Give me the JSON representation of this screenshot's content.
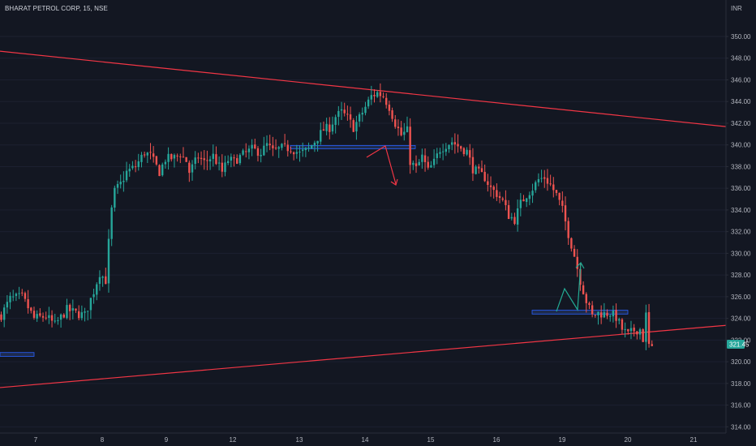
{
  "header": {
    "title": "BHARAT PETROL CORP, 15, NSE"
  },
  "axis": {
    "currency": "INR"
  },
  "current_price": {
    "label": "321.45",
    "value": 321.45
  },
  "colors": {
    "background": "#131722",
    "up": "#26a69a",
    "down": "#ef5350",
    "trendline": "#f23645",
    "zone_fill": "#1e2b4d",
    "zone_border": "#2962ff",
    "arrow_down": "#f23645",
    "arrow_up": "#22ab94",
    "price_tag": "#26a69a",
    "axis_text": "#b2b5be",
    "axis_line": "#2a2e39"
  },
  "chart_data": {
    "type": "candlestick",
    "title": "BHARAT PETROL CORP, 15, NSE",
    "ylabel": "INR",
    "ylim": [
      313.3,
      353.5
    ],
    "y_ticks": [
      "314.00",
      "316.00",
      "318.00",
      "320.00",
      "322.00",
      "324.00",
      "326.00",
      "328.00",
      "330.00",
      "332.00",
      "334.00",
      "336.00",
      "338.00",
      "340.00",
      "342.00",
      "344.00",
      "346.00",
      "348.00",
      "350.00"
    ],
    "x_ticks": [
      "7",
      "8",
      "9",
      "12",
      "13",
      "14",
      "15",
      "16",
      "19",
      "20",
      "21"
    ],
    "session_path": [
      {
        "i": 0,
        "p": 324.3
      },
      {
        "i": 3,
        "p": 325.8
      },
      {
        "i": 7,
        "p": 326.0
      },
      {
        "i": 11,
        "p": 324.0
      },
      {
        "i": 15,
        "p": 324.2
      },
      {
        "i": 18,
        "p": 323.4
      },
      {
        "i": 22,
        "p": 324.8
      },
      {
        "i": 26,
        "p": 324.4
      },
      {
        "i": 28,
        "p": 324.3
      },
      {
        "i": 31,
        "p": 326.5
      },
      {
        "i": 33,
        "p": 328.2
      },
      {
        "i": 35,
        "p": 327.5
      },
      {
        "i": 36,
        "p": 331.0
      },
      {
        "i": 37,
        "p": 334.0
      },
      {
        "i": 38,
        "p": 335.7
      },
      {
        "i": 40,
        "p": 336.4
      },
      {
        "i": 42,
        "p": 337.5
      },
      {
        "i": 45,
        "p": 338.0
      },
      {
        "i": 48,
        "p": 339.3
      },
      {
        "i": 50,
        "p": 339.0
      },
      {
        "i": 53,
        "p": 337.5
      },
      {
        "i": 55,
        "p": 338.7
      },
      {
        "i": 58,
        "p": 338.8
      },
      {
        "i": 60,
        "p": 339.2
      },
      {
        "i": 62,
        "p": 338.5
      },
      {
        "i": 63,
        "p": 337.5
      },
      {
        "i": 66,
        "p": 338.9
      },
      {
        "i": 68,
        "p": 338.4
      },
      {
        "i": 71,
        "p": 339.0
      },
      {
        "i": 74,
        "p": 337.5
      },
      {
        "i": 76,
        "p": 338.6
      },
      {
        "i": 78,
        "p": 338.5
      },
      {
        "i": 81,
        "p": 339.1
      },
      {
        "i": 84,
        "p": 339.6
      },
      {
        "i": 87,
        "p": 339.3
      },
      {
        "i": 89,
        "p": 340.0
      },
      {
        "i": 91,
        "p": 339.4
      },
      {
        "i": 94,
        "p": 339.7
      },
      {
        "i": 97,
        "p": 339.7
      },
      {
        "i": 100,
        "p": 339.2
      },
      {
        "i": 103,
        "p": 339.6
      },
      {
        "i": 106,
        "p": 340.7
      },
      {
        "i": 108,
        "p": 341.4
      },
      {
        "i": 110,
        "p": 341.6
      },
      {
        "i": 112,
        "p": 342.6
      },
      {
        "i": 114,
        "p": 343.0
      },
      {
        "i": 116,
        "p": 342.5
      },
      {
        "i": 118,
        "p": 341.6
      },
      {
        "i": 120,
        "p": 342.5
      },
      {
        "i": 122,
        "p": 343.5
      },
      {
        "i": 124,
        "p": 344.5
      },
      {
        "i": 126,
        "p": 344.8
      },
      {
        "i": 128,
        "p": 344.5
      },
      {
        "i": 130,
        "p": 343.5
      },
      {
        "i": 132,
        "p": 342.0
      },
      {
        "i": 134,
        "p": 340.9
      },
      {
        "i": 136,
        "p": 341.3
      },
      {
        "i": 137,
        "p": 338.5
      },
      {
        "i": 139,
        "p": 337.8
      },
      {
        "i": 141,
        "p": 338.9
      },
      {
        "i": 143,
        "p": 337.6
      },
      {
        "i": 145,
        "p": 338.4
      },
      {
        "i": 147,
        "p": 339.6
      },
      {
        "i": 149,
        "p": 340.0
      },
      {
        "i": 151,
        "p": 340.3
      },
      {
        "i": 153,
        "p": 339.9
      },
      {
        "i": 156,
        "p": 339.4
      },
      {
        "i": 158,
        "p": 337.8
      },
      {
        "i": 160,
        "p": 337.4
      },
      {
        "i": 162,
        "p": 337.0
      },
      {
        "i": 164,
        "p": 336.0
      },
      {
        "i": 166,
        "p": 335.5
      },
      {
        "i": 168,
        "p": 334.8
      },
      {
        "i": 170,
        "p": 333.5
      },
      {
        "i": 172,
        "p": 333.1
      },
      {
        "i": 174,
        "p": 334.6
      },
      {
        "i": 176,
        "p": 335.4
      },
      {
        "i": 178,
        "p": 336.0
      },
      {
        "i": 180,
        "p": 336.8
      },
      {
        "i": 182,
        "p": 337.0
      },
      {
        "i": 184,
        "p": 336.3
      },
      {
        "i": 186,
        "p": 335.4
      },
      {
        "i": 188,
        "p": 334.0
      },
      {
        "i": 190,
        "p": 331.8
      },
      {
        "i": 192,
        "p": 329.8
      },
      {
        "i": 194,
        "p": 327.5
      },
      {
        "i": 196,
        "p": 325.6
      },
      {
        "i": 198,
        "p": 324.2
      },
      {
        "i": 200,
        "p": 324.5
      },
      {
        "i": 202,
        "p": 324.4
      },
      {
        "i": 204,
        "p": 324.5
      },
      {
        "i": 206,
        "p": 324.1
      },
      {
        "i": 208,
        "p": 323.0
      },
      {
        "i": 210,
        "p": 322.5
      },
      {
        "i": 212,
        "p": 322.9
      },
      {
        "i": 214,
        "p": 323.0
      },
      {
        "i": 215,
        "p": 322.1
      },
      {
        "i": 216,
        "p": 324.3
      },
      {
        "i": 217,
        "p": 321.5
      },
      {
        "i": 218,
        "p": 321.45
      }
    ],
    "drawings": {
      "trendlines": [
        {
          "from": {
            "date": "7",
            "price": 348.3
          },
          "to": {
            "date": "21",
            "price": 342.0
          }
        },
        {
          "from": {
            "date": "7",
            "price": 317.9
          },
          "to": {
            "date": "21",
            "price": 323.1
          }
        }
      ],
      "zones": [
        {
          "price_top": 339.95,
          "price_bottom": 339.65
        },
        {
          "price_top": 324.75,
          "price_bottom": 324.4
        },
        {
          "price_top": 320.85,
          "price_bottom": 320.5
        }
      ]
    }
  }
}
